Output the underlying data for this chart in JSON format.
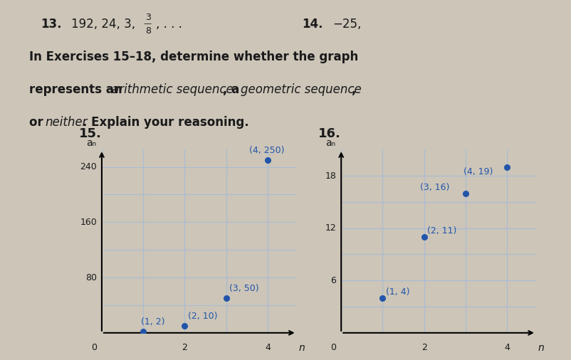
{
  "background_color": "#ccc5b8",
  "text_color": "#1a1a1a",
  "blue_color": "#2255aa",
  "graph15": {
    "label": "15.",
    "ylabel": "aₙ",
    "xlabel": "n",
    "yticks": [
      0,
      80,
      160,
      240
    ],
    "xticks": [
      0,
      2,
      4
    ],
    "extra_yticks": [
      40,
      120,
      200
    ],
    "extra_xticks": [
      1,
      3
    ],
    "points": [
      [
        1,
        2
      ],
      [
        2,
        10
      ],
      [
        3,
        50
      ],
      [
        4,
        250
      ]
    ],
    "point_labels": [
      "(1, 2)",
      "(2, 10)",
      "(3, 50)",
      "(4, 250)"
    ],
    "xlim": [
      0,
      4.7
    ],
    "ylim": [
      0,
      265
    ],
    "grid_color": "#a8bcd4",
    "dot_color": "#2255aa"
  },
  "graph16": {
    "label": "16.",
    "ylabel": "aₙ",
    "xlabel": "n",
    "yticks": [
      0,
      6,
      12,
      18
    ],
    "xticks": [
      0,
      2,
      4
    ],
    "extra_yticks": [
      3,
      9,
      15
    ],
    "extra_xticks": [
      1,
      3
    ],
    "points": [
      [
        1,
        4
      ],
      [
        2,
        11
      ],
      [
        3,
        16
      ],
      [
        4,
        19
      ]
    ],
    "point_labels": [
      "(1, 4)",
      "(2, 11)",
      "(3, 16)",
      "(4, 19)"
    ],
    "xlim": [
      0,
      4.7
    ],
    "ylim": [
      0,
      21
    ],
    "grid_color": "#a8bcd4",
    "dot_color": "#2255aa"
  }
}
